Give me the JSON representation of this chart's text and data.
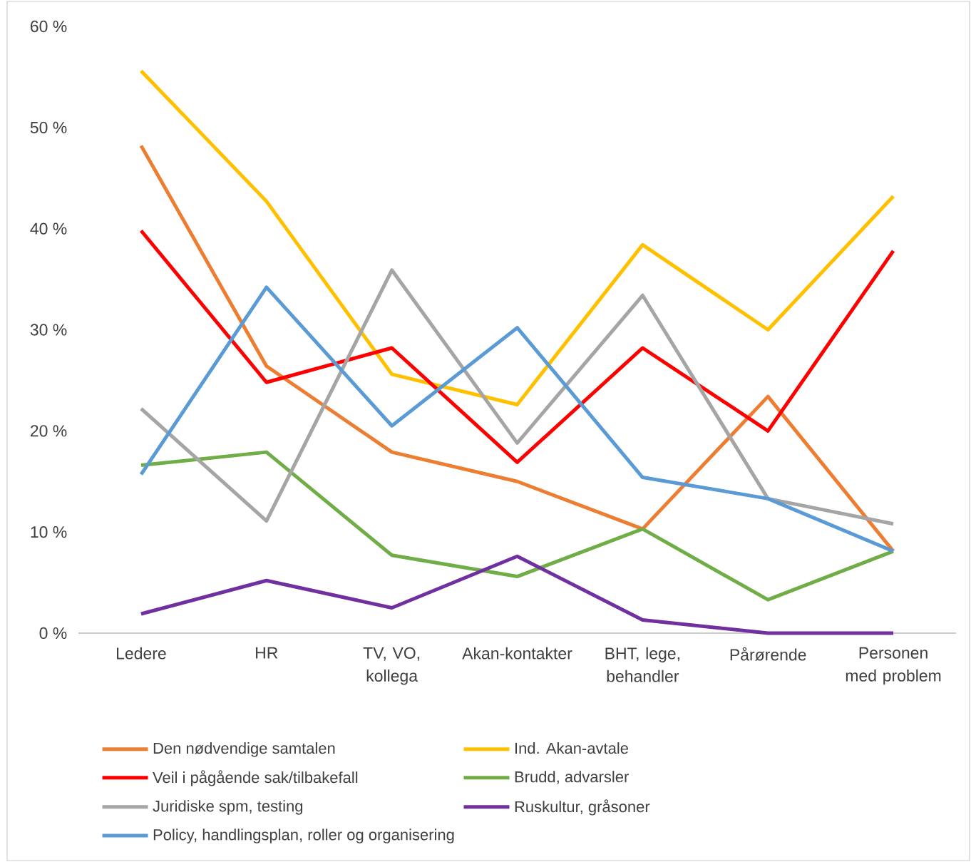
{
  "chart_data": {
    "type": "line",
    "categories": [
      "Ledere",
      "HR",
      "TV, VO, kollega",
      "Akan-kontakter",
      "BHT, lege, behandler",
      "Pårørende",
      "Personen med problem"
    ],
    "series": [
      {
        "name": "Den nødvendige samtalen",
        "color": "#ed7d31",
        "values": [
          48.2,
          26.4,
          17.9,
          15.0,
          10.3,
          23.4,
          8.1
        ]
      },
      {
        "name": "Ind. Akan-avtale",
        "color": "#ffc000",
        "values": [
          55.6,
          42.7,
          25.6,
          22.6,
          38.4,
          30.0,
          43.2
        ]
      },
      {
        "name": "Veil i pågående sak/tilbakefall",
        "color": "#ff0000",
        "values": [
          39.8,
          24.8,
          28.2,
          16.9,
          28.2,
          20.0,
          37.8
        ]
      },
      {
        "name": "Brudd, advarsler",
        "color": "#70ad47",
        "values": [
          16.6,
          17.9,
          7.7,
          5.6,
          10.3,
          3.3,
          8.1
        ]
      },
      {
        "name": "Juridiske spm, testing",
        "color": "#a5a5a5",
        "values": [
          22.2,
          11.1,
          35.9,
          18.8,
          33.4,
          13.3,
          10.8
        ]
      },
      {
        "name": "Ruskultur, gråsoner",
        "color": "#7030a0",
        "values": [
          1.9,
          5.2,
          2.5,
          7.6,
          1.3,
          0,
          0
        ]
      },
      {
        "name": "Policy, handlingsplan, roller og organisering",
        "color": "#5b9bd5",
        "values": [
          15.7,
          34.2,
          20.5,
          30.2,
          15.4,
          13.3,
          8.1
        ]
      }
    ],
    "ylim": [
      0,
      60
    ],
    "yticks": [
      {
        "value": 0,
        "label": "0 %"
      },
      {
        "value": 10,
        "label": "10 %"
      },
      {
        "value": 20,
        "label": "20 %"
      },
      {
        "value": 30,
        "label": "30 %"
      },
      {
        "value": 40,
        "label": "40 %"
      },
      {
        "value": 50,
        "label": "50 %"
      },
      {
        "value": 60,
        "label": "60 %"
      }
    ],
    "legend": "bottom"
  }
}
